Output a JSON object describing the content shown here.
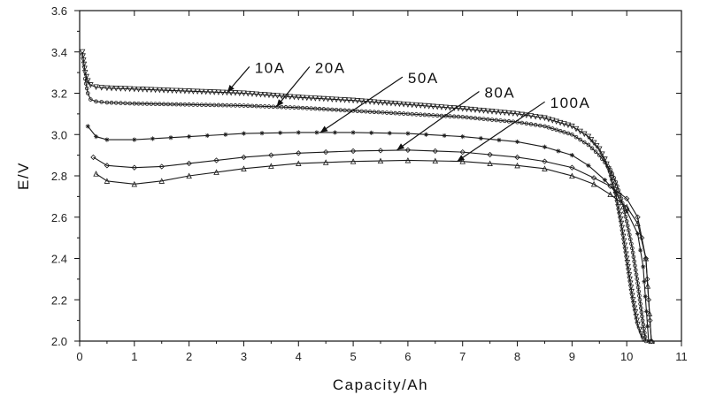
{
  "chart_data": {
    "type": "line",
    "title": "",
    "xlabel": "Capacity/Ah",
    "ylabel": "E/V",
    "xlim": [
      0,
      11
    ],
    "ylim": [
      2.0,
      3.6
    ],
    "xticks": [
      0,
      1,
      2,
      3,
      4,
      5,
      6,
      7,
      8,
      9,
      10,
      11
    ],
    "yticks": [
      2.0,
      2.2,
      2.4,
      2.6,
      2.8,
      3.0,
      3.2,
      3.4,
      3.6
    ],
    "ytick_labels": [
      "2.0",
      "2.2",
      "2.4",
      "2.6",
      "2.8",
      "3.0",
      "3.2",
      "3.4",
      "3.6"
    ],
    "grid": false,
    "legend": "none",
    "series": [
      {
        "name": "10A",
        "marker": "triangle-down",
        "x": [
          0.05,
          0.1,
          0.15,
          0.2,
          0.3,
          0.5,
          1,
          2,
          3,
          4,
          5,
          6,
          7,
          8,
          8.5,
          9,
          9.3,
          9.5,
          9.6,
          9.7,
          9.8,
          9.9,
          10.0,
          10.1,
          10.2,
          10.3
        ],
        "y": [
          3.4,
          3.3,
          3.26,
          3.24,
          3.23,
          3.225,
          3.22,
          3.21,
          3.2,
          3.18,
          3.165,
          3.145,
          3.125,
          3.1,
          3.08,
          3.04,
          2.99,
          2.93,
          2.88,
          2.81,
          2.71,
          2.57,
          2.4,
          2.22,
          2.08,
          2.01
        ]
      },
      {
        "name": "20A",
        "marker": "circle",
        "x": [
          0.1,
          0.15,
          0.2,
          0.3,
          0.5,
          1,
          2,
          3,
          4,
          5,
          6,
          7,
          8,
          8.5,
          9,
          9.3,
          9.5,
          9.7,
          9.8,
          9.9,
          10.0,
          10.1,
          10.2,
          10.3,
          10.35
        ],
        "y": [
          3.27,
          3.2,
          3.17,
          3.16,
          3.155,
          3.15,
          3.145,
          3.14,
          3.13,
          3.115,
          3.1,
          3.085,
          3.06,
          3.04,
          3.0,
          2.95,
          2.9,
          2.83,
          2.77,
          2.69,
          2.58,
          2.45,
          2.28,
          2.08,
          2.0
        ]
      },
      {
        "name": "50A",
        "marker": "star",
        "x": [
          0.15,
          0.3,
          0.5,
          1,
          2,
          3,
          4,
          5,
          6,
          7,
          8,
          8.5,
          9,
          9.3,
          9.6,
          9.8,
          10.0,
          10.2,
          10.3,
          10.4
        ],
        "y": [
          3.04,
          2.99,
          2.975,
          2.975,
          2.99,
          3.005,
          3.01,
          3.01,
          3.005,
          2.99,
          2.965,
          2.94,
          2.9,
          2.85,
          2.78,
          2.72,
          2.63,
          2.52,
          2.36,
          2.0
        ]
      },
      {
        "name": "80A",
        "marker": "diamond",
        "x": [
          0.25,
          0.5,
          1,
          1.5,
          2,
          3,
          4,
          5,
          6,
          7,
          8,
          8.5,
          9,
          9.4,
          9.7,
          10.0,
          10.2,
          10.35,
          10.45
        ],
        "y": [
          2.89,
          2.85,
          2.84,
          2.845,
          2.86,
          2.89,
          2.91,
          2.92,
          2.925,
          2.915,
          2.89,
          2.87,
          2.84,
          2.79,
          2.75,
          2.69,
          2.6,
          2.4,
          2.0
        ]
      },
      {
        "name": "100A",
        "marker": "triangle-up",
        "x": [
          0.3,
          0.5,
          1,
          1.5,
          2,
          3,
          4,
          5,
          6,
          7,
          8,
          8.5,
          9,
          9.4,
          9.7,
          10.0,
          10.2,
          10.35,
          10.45
        ],
        "y": [
          2.81,
          2.775,
          2.76,
          2.775,
          2.8,
          2.835,
          2.86,
          2.87,
          2.875,
          2.87,
          2.85,
          2.835,
          2.8,
          2.76,
          2.71,
          2.65,
          2.57,
          2.4,
          2.0
        ]
      }
    ],
    "annotations": [
      {
        "text": "10A",
        "series": "10A",
        "point": [
          2.7,
          3.205
        ],
        "label_pos": [
          3.2,
          3.32
        ]
      },
      {
        "text": "20A",
        "series": "20A",
        "point": [
          3.6,
          3.135
        ],
        "label_pos": [
          4.3,
          3.32
        ]
      },
      {
        "text": "50A",
        "series": "50A",
        "point": [
          4.4,
          3.01
        ],
        "label_pos": [
          6.0,
          3.27
        ]
      },
      {
        "text": "80A",
        "series": "80A",
        "point": [
          5.8,
          2.925
        ],
        "label_pos": [
          7.4,
          3.2
        ]
      },
      {
        "text": "100A",
        "series": "100A",
        "point": [
          6.9,
          2.87
        ],
        "label_pos": [
          8.6,
          3.15
        ]
      }
    ]
  }
}
